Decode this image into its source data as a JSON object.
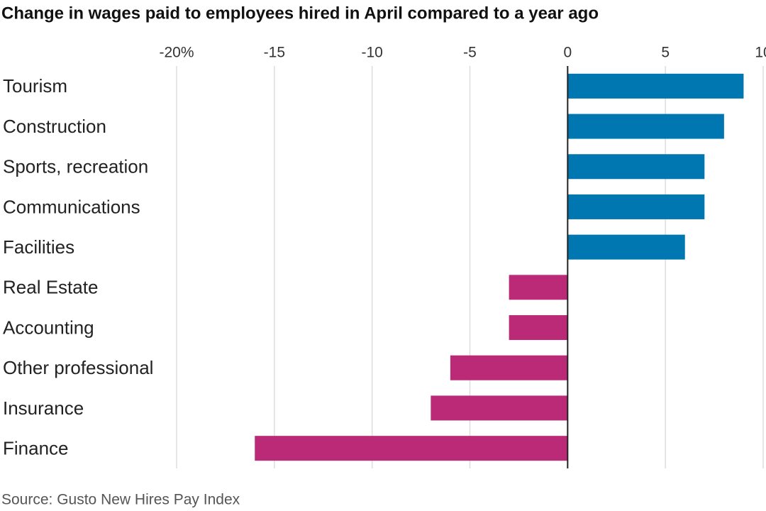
{
  "chart_data": {
    "type": "hbar",
    "title": "Change in wages paid to employees hired in April compared to a year ago",
    "source": "Source: Gusto New Hires Pay Index",
    "categories": [
      "Tourism",
      "Construction",
      "Sports, recreation",
      "Communications",
      "Facilities",
      "Real Estate",
      "Accounting",
      "Other professional",
      "Insurance",
      "Finance"
    ],
    "values": [
      9,
      8,
      7,
      7,
      6,
      -3,
      -3,
      -6,
      -7,
      -16
    ],
    "colors": [
      "#0077b0",
      "#0077b0",
      "#0077b0",
      "#0077b0",
      "#0077b0",
      "#bb2a76",
      "#bb2a76",
      "#bb2a76",
      "#bb2a76",
      "#bb2a76"
    ],
    "xlim": [
      -20,
      10
    ],
    "xticks": [
      {
        "value": -20,
        "label": "-20%"
      },
      -15,
      -10,
      -5,
      0,
      5,
      10
    ],
    "grid": true
  }
}
